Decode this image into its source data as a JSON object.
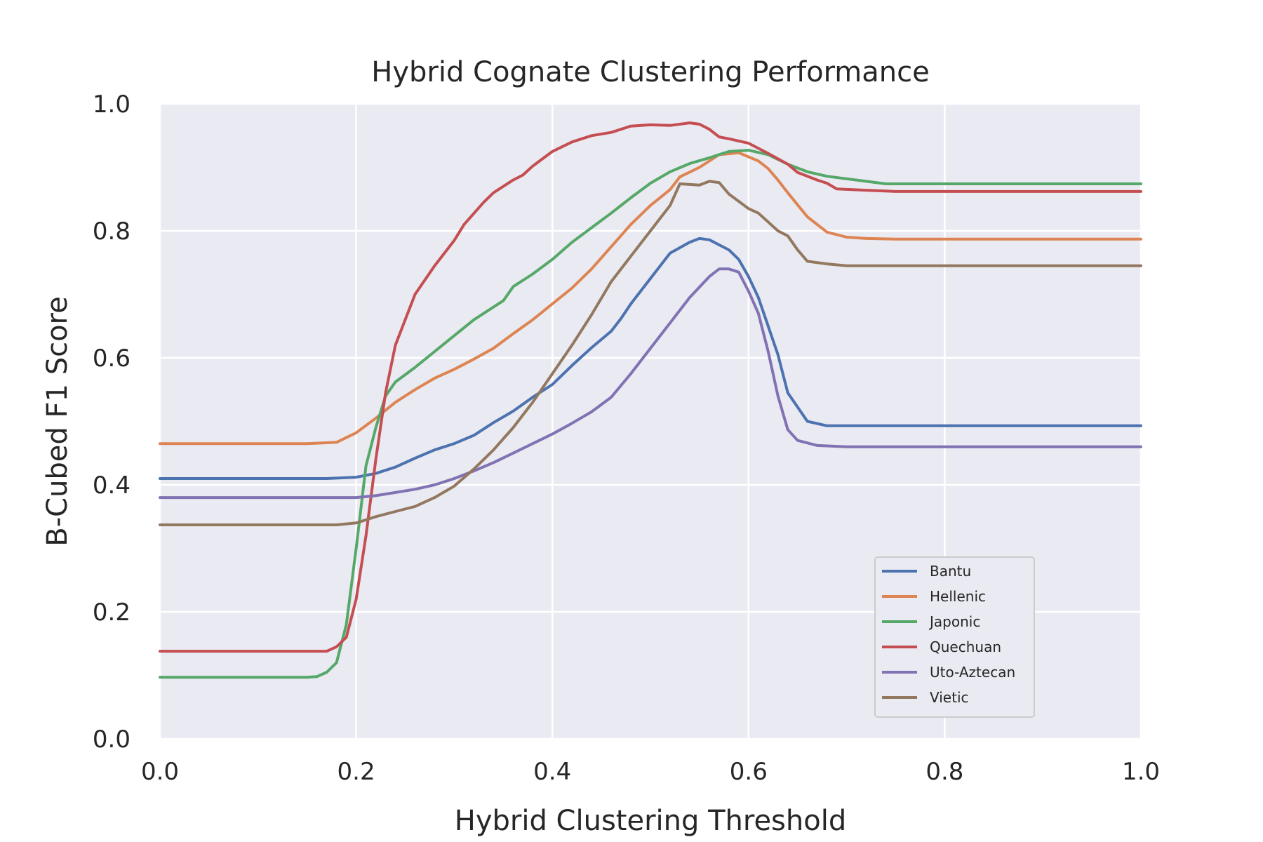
{
  "chart_data": {
    "type": "line",
    "title": "Hybrid Cognate Clustering Performance",
    "xlabel": "Hybrid Clustering Threshold",
    "ylabel": "B-Cubed F1 Score",
    "xlim": [
      0.0,
      1.0
    ],
    "ylim": [
      0.0,
      1.0
    ],
    "xticks": [
      "0.0",
      "0.2",
      "0.4",
      "0.6",
      "0.8",
      "1.0"
    ],
    "yticks": [
      "0.0",
      "0.2",
      "0.4",
      "0.6",
      "0.8",
      "1.0"
    ],
    "grid": true,
    "legend_position": "lower-right",
    "background": "#eaeaf2",
    "series": [
      {
        "name": "Bantu",
        "color": "#4c72b0",
        "points": [
          [
            0.0,
            0.41
          ],
          [
            0.17,
            0.41
          ],
          [
            0.2,
            0.412
          ],
          [
            0.22,
            0.418
          ],
          [
            0.24,
            0.428
          ],
          [
            0.26,
            0.442
          ],
          [
            0.28,
            0.455
          ],
          [
            0.3,
            0.465
          ],
          [
            0.32,
            0.478
          ],
          [
            0.34,
            0.498
          ],
          [
            0.36,
            0.516
          ],
          [
            0.38,
            0.538
          ],
          [
            0.4,
            0.558
          ],
          [
            0.42,
            0.588
          ],
          [
            0.44,
            0.616
          ],
          [
            0.46,
            0.642
          ],
          [
            0.47,
            0.662
          ],
          [
            0.48,
            0.685
          ],
          [
            0.5,
            0.725
          ],
          [
            0.52,
            0.765
          ],
          [
            0.54,
            0.782
          ],
          [
            0.55,
            0.788
          ],
          [
            0.56,
            0.786
          ],
          [
            0.58,
            0.77
          ],
          [
            0.59,
            0.755
          ],
          [
            0.6,
            0.728
          ],
          [
            0.61,
            0.695
          ],
          [
            0.62,
            0.65
          ],
          [
            0.63,
            0.605
          ],
          [
            0.64,
            0.545
          ],
          [
            0.66,
            0.5
          ],
          [
            0.68,
            0.493
          ],
          [
            1.0,
            0.493
          ]
        ]
      },
      {
        "name": "Hellenic",
        "color": "#dd8452",
        "points": [
          [
            0.0,
            0.465
          ],
          [
            0.15,
            0.465
          ],
          [
            0.18,
            0.467
          ],
          [
            0.2,
            0.482
          ],
          [
            0.22,
            0.505
          ],
          [
            0.24,
            0.53
          ],
          [
            0.26,
            0.55
          ],
          [
            0.28,
            0.568
          ],
          [
            0.3,
            0.582
          ],
          [
            0.32,
            0.598
          ],
          [
            0.34,
            0.615
          ],
          [
            0.36,
            0.638
          ],
          [
            0.38,
            0.66
          ],
          [
            0.4,
            0.685
          ],
          [
            0.42,
            0.71
          ],
          [
            0.44,
            0.74
          ],
          [
            0.46,
            0.775
          ],
          [
            0.48,
            0.81
          ],
          [
            0.5,
            0.84
          ],
          [
            0.52,
            0.865
          ],
          [
            0.53,
            0.885
          ],
          [
            0.55,
            0.9
          ],
          [
            0.57,
            0.92
          ],
          [
            0.59,
            0.923
          ],
          [
            0.61,
            0.91
          ],
          [
            0.62,
            0.898
          ],
          [
            0.63,
            0.88
          ],
          [
            0.64,
            0.86
          ],
          [
            0.66,
            0.822
          ],
          [
            0.68,
            0.798
          ],
          [
            0.7,
            0.79
          ],
          [
            0.72,
            0.788
          ],
          [
            0.75,
            0.787
          ],
          [
            1.0,
            0.787
          ]
        ]
      },
      {
        "name": "Japonic",
        "color": "#55a868",
        "points": [
          [
            0.0,
            0.097
          ],
          [
            0.15,
            0.097
          ],
          [
            0.16,
            0.098
          ],
          [
            0.17,
            0.105
          ],
          [
            0.18,
            0.12
          ],
          [
            0.19,
            0.18
          ],
          [
            0.2,
            0.3
          ],
          [
            0.21,
            0.43
          ],
          [
            0.22,
            0.49
          ],
          [
            0.23,
            0.54
          ],
          [
            0.24,
            0.562
          ],
          [
            0.26,
            0.585
          ],
          [
            0.28,
            0.61
          ],
          [
            0.3,
            0.635
          ],
          [
            0.32,
            0.66
          ],
          [
            0.34,
            0.68
          ],
          [
            0.35,
            0.69
          ],
          [
            0.36,
            0.712
          ],
          [
            0.38,
            0.732
          ],
          [
            0.4,
            0.755
          ],
          [
            0.42,
            0.782
          ],
          [
            0.44,
            0.805
          ],
          [
            0.46,
            0.828
          ],
          [
            0.48,
            0.852
          ],
          [
            0.5,
            0.875
          ],
          [
            0.52,
            0.893
          ],
          [
            0.54,
            0.906
          ],
          [
            0.56,
            0.915
          ],
          [
            0.58,
            0.925
          ],
          [
            0.6,
            0.927
          ],
          [
            0.62,
            0.92
          ],
          [
            0.64,
            0.905
          ],
          [
            0.66,
            0.893
          ],
          [
            0.68,
            0.886
          ],
          [
            0.7,
            0.882
          ],
          [
            0.72,
            0.878
          ],
          [
            0.74,
            0.874
          ],
          [
            1.0,
            0.874
          ]
        ]
      },
      {
        "name": "Quechuan",
        "color": "#c44e52",
        "points": [
          [
            0.0,
            0.138
          ],
          [
            0.17,
            0.138
          ],
          [
            0.18,
            0.145
          ],
          [
            0.19,
            0.16
          ],
          [
            0.2,
            0.22
          ],
          [
            0.21,
            0.32
          ],
          [
            0.22,
            0.44
          ],
          [
            0.23,
            0.545
          ],
          [
            0.24,
            0.62
          ],
          [
            0.25,
            0.66
          ],
          [
            0.26,
            0.7
          ],
          [
            0.28,
            0.745
          ],
          [
            0.3,
            0.785
          ],
          [
            0.31,
            0.81
          ],
          [
            0.33,
            0.845
          ],
          [
            0.34,
            0.86
          ],
          [
            0.36,
            0.88
          ],
          [
            0.37,
            0.888
          ],
          [
            0.38,
            0.902
          ],
          [
            0.4,
            0.925
          ],
          [
            0.42,
            0.94
          ],
          [
            0.44,
            0.95
          ],
          [
            0.46,
            0.955
          ],
          [
            0.48,
            0.965
          ],
          [
            0.5,
            0.967
          ],
          [
            0.52,
            0.966
          ],
          [
            0.54,
            0.97
          ],
          [
            0.55,
            0.968
          ],
          [
            0.56,
            0.96
          ],
          [
            0.57,
            0.948
          ],
          [
            0.58,
            0.945
          ],
          [
            0.6,
            0.938
          ],
          [
            0.62,
            0.922
          ],
          [
            0.64,
            0.905
          ],
          [
            0.65,
            0.892
          ],
          [
            0.67,
            0.88
          ],
          [
            0.68,
            0.875
          ],
          [
            0.69,
            0.866
          ],
          [
            0.72,
            0.864
          ],
          [
            0.75,
            0.862
          ],
          [
            1.0,
            0.862
          ]
        ]
      },
      {
        "name": "Uto-Aztecan",
        "color": "#8172b3",
        "points": [
          [
            0.0,
            0.38
          ],
          [
            0.2,
            0.38
          ],
          [
            0.22,
            0.383
          ],
          [
            0.24,
            0.388
          ],
          [
            0.26,
            0.393
          ],
          [
            0.28,
            0.4
          ],
          [
            0.3,
            0.41
          ],
          [
            0.32,
            0.422
          ],
          [
            0.34,
            0.435
          ],
          [
            0.36,
            0.45
          ],
          [
            0.38,
            0.465
          ],
          [
            0.4,
            0.48
          ],
          [
            0.42,
            0.497
          ],
          [
            0.44,
            0.515
          ],
          [
            0.46,
            0.538
          ],
          [
            0.48,
            0.575
          ],
          [
            0.5,
            0.615
          ],
          [
            0.52,
            0.655
          ],
          [
            0.54,
            0.695
          ],
          [
            0.56,
            0.728
          ],
          [
            0.57,
            0.74
          ],
          [
            0.58,
            0.74
          ],
          [
            0.59,
            0.735
          ],
          [
            0.6,
            0.705
          ],
          [
            0.61,
            0.67
          ],
          [
            0.62,
            0.61
          ],
          [
            0.63,
            0.54
          ],
          [
            0.64,
            0.487
          ],
          [
            0.65,
            0.47
          ],
          [
            0.67,
            0.462
          ],
          [
            0.7,
            0.46
          ],
          [
            1.0,
            0.46
          ]
        ]
      },
      {
        "name": "Vietic",
        "color": "#937860",
        "points": [
          [
            0.0,
            0.337
          ],
          [
            0.18,
            0.337
          ],
          [
            0.2,
            0.34
          ],
          [
            0.22,
            0.35
          ],
          [
            0.24,
            0.358
          ],
          [
            0.26,
            0.366
          ],
          [
            0.28,
            0.38
          ],
          [
            0.3,
            0.398
          ],
          [
            0.32,
            0.425
          ],
          [
            0.34,
            0.455
          ],
          [
            0.36,
            0.49
          ],
          [
            0.38,
            0.53
          ],
          [
            0.4,
            0.575
          ],
          [
            0.42,
            0.62
          ],
          [
            0.44,
            0.668
          ],
          [
            0.46,
            0.72
          ],
          [
            0.48,
            0.76
          ],
          [
            0.5,
            0.8
          ],
          [
            0.51,
            0.82
          ],
          [
            0.52,
            0.84
          ],
          [
            0.53,
            0.874
          ],
          [
            0.55,
            0.872
          ],
          [
            0.56,
            0.878
          ],
          [
            0.57,
            0.876
          ],
          [
            0.58,
            0.858
          ],
          [
            0.6,
            0.835
          ],
          [
            0.61,
            0.828
          ],
          [
            0.63,
            0.8
          ],
          [
            0.64,
            0.792
          ],
          [
            0.65,
            0.77
          ],
          [
            0.66,
            0.752
          ],
          [
            0.68,
            0.748
          ],
          [
            0.7,
            0.745
          ],
          [
            1.0,
            0.745
          ]
        ]
      }
    ]
  }
}
